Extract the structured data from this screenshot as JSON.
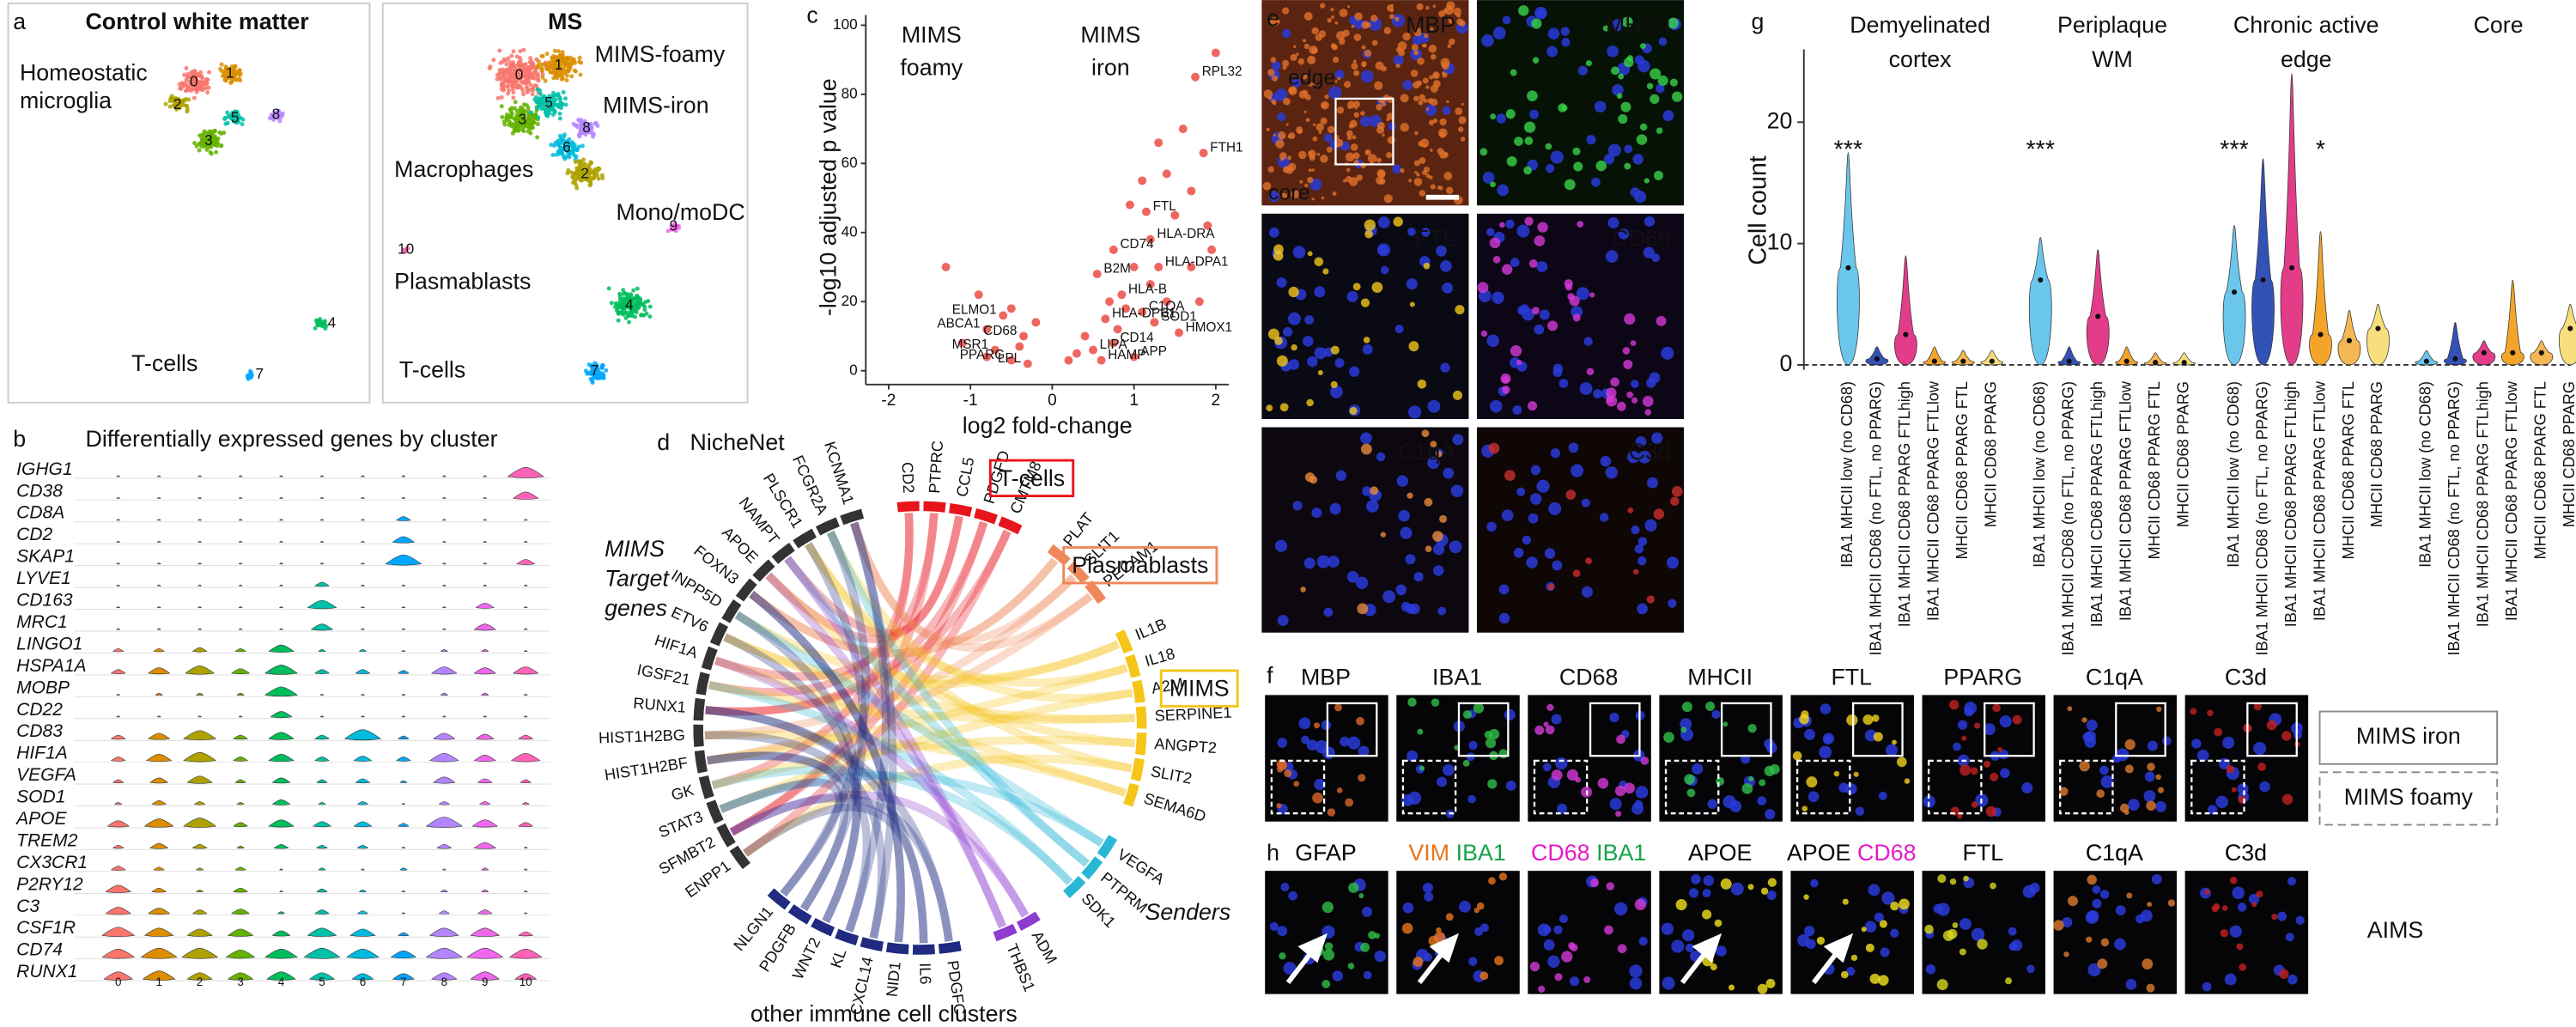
{
  "panels": {
    "a": {
      "label": "a",
      "control": {
        "title": "Control white matter",
        "annotations": [
          "Homeostatic",
          "microglia",
          "T-cells"
        ],
        "clusters": [
          "0",
          "1",
          "2",
          "3",
          "5",
          "8",
          "4",
          "7"
        ]
      },
      "ms": {
        "title": "MS",
        "annotations": [
          "MIMS-foamy",
          "MIMS-iron",
          "Macrophages",
          "Mono/moDC",
          "Plasmablasts",
          "T-cells"
        ],
        "clusters": [
          "0",
          "1",
          "3",
          "5",
          "8",
          "6",
          "2",
          "9",
          "10",
          "4",
          "7"
        ]
      }
    },
    "b": {
      "label": "b",
      "title": "Differentially expressed genes by cluster"
    },
    "c": {
      "label": "c"
    },
    "d": {
      "label": "d",
      "title": "NicheNet",
      "targets_label": [
        "MIMS",
        "Target",
        "genes"
      ],
      "senders_label": "Senders",
      "bottom_label": "other immune cell clusters",
      "sender_groups": [
        {
          "name": "T-cells",
          "color": "#e8141c",
          "genes": [
            "CD2",
            "PTPRC",
            "CCL5",
            "PDGFD",
            "CMTM8"
          ]
        },
        {
          "name": "Plasmablasts",
          "color": "#f0875a",
          "genes": [
            "PLAT",
            "SLIT1",
            "PECAM1"
          ]
        },
        {
          "name": "MIMS",
          "color": "#f5c518",
          "genes": [
            "IL1B",
            "IL18",
            "A2M",
            "SERPINE1",
            "ANGPT2",
            "SLIT2",
            "SEMA6D"
          ]
        },
        {
          "color": "#2ab7d6",
          "genes": [
            "VEGFA",
            "PTPRM",
            "SDK1"
          ]
        },
        {
          "color": "#8e3bd0",
          "genes": [
            "ADM",
            "THBS1"
          ]
        },
        {
          "color": "#1f2a80",
          "genes": [
            "PDGFC",
            "IL6",
            "NID1",
            "CXCL14",
            "KL",
            "WNT2",
            "PDGFB",
            "NLGN1"
          ]
        }
      ],
      "targets": {
        "color": "#333333",
        "genes": [
          "ENPP1",
          "SFMBT2",
          "STAT3",
          "GK",
          "HIST1H2BF",
          "HIST1H2BG",
          "RUNX1",
          "IGSF21",
          "HIF1A",
          "ETV6",
          "INPP5D",
          "FOXN3",
          "APOE",
          "NAMPT",
          "PLSCR1",
          "FCGR2A",
          "KCNMA1"
        ]
      }
    },
    "e": {
      "label": "e",
      "stains": [
        "MBP",
        "MHCII",
        "FTL",
        "CD68",
        "C1qA",
        "C3d"
      ],
      "regions": [
        "edge",
        "core"
      ]
    },
    "f": {
      "label": "f",
      "stains": [
        "MBP",
        "IBA1",
        "CD68",
        "MHCII",
        "FTL",
        "PPARG",
        "C1qA",
        "C3d"
      ],
      "legend": [
        "MIMS iron",
        "MIMS foamy"
      ]
    },
    "g": {
      "label": "g"
    },
    "h": {
      "label": "h",
      "stains": [
        [
          "GFAP"
        ],
        [
          "VIM",
          "IBA1"
        ],
        [
          "CD68",
          "IBA1"
        ],
        [
          "APOE"
        ],
        [
          "APOE",
          "CD68"
        ],
        [
          "FTL"
        ],
        [
          "C1qA"
        ],
        [
          "C3d"
        ]
      ],
      "stain_colors": [
        [
          "#000000"
        ],
        [
          "#e8741c",
          "#16a34a"
        ],
        [
          "#e619c8",
          "#16a34a"
        ],
        [
          "#000000"
        ],
        [
          "#000000",
          "#e619c8"
        ],
        [
          "#000000"
        ],
        [
          "#000000"
        ],
        [
          "#000000"
        ]
      ],
      "note": "AIMS"
    }
  },
  "chart_data": [
    {
      "type": "stackedviolin",
      "genes": [
        "IGHG1",
        "CD38",
        "CD8A",
        "CD2",
        "SKAP1",
        "LYVE1",
        "CD163",
        "MRC1",
        "LINGO1",
        "HSPA1A",
        "MOBP",
        "CD22",
        "CD83",
        "HIF1A",
        "VEGFA",
        "SOD1",
        "APOE",
        "TREM2",
        "CX3CR1",
        "P2RY12",
        "C3",
        "CSF1R",
        "CD74",
        "RUNX1"
      ],
      "categories": [
        "0",
        "1",
        "2",
        "3",
        "4",
        "5",
        "6",
        "7",
        "8",
        "9",
        "10"
      ],
      "colors": [
        "#F8766D",
        "#DB8E00",
        "#AEA200",
        "#64B200",
        "#00BD5C",
        "#00C1A7",
        "#00BADE",
        "#00A6FF",
        "#B385FF",
        "#EF67EB",
        "#FF63B6"
      ],
      "values": [
        [
          0,
          0,
          0,
          0,
          0,
          0,
          0,
          0,
          0,
          0,
          0.9
        ],
        [
          0,
          0,
          0,
          0,
          0,
          0,
          0,
          0,
          0,
          0,
          0.6
        ],
        [
          0,
          0,
          0,
          0,
          0,
          0,
          0,
          0.3,
          0,
          0,
          0
        ],
        [
          0,
          0,
          0,
          0,
          0,
          0,
          0,
          0.5,
          0,
          0,
          0
        ],
        [
          0,
          0,
          0,
          0,
          0,
          0,
          0,
          0.9,
          0,
          0,
          0.4
        ],
        [
          0,
          0,
          0,
          0,
          0,
          0.3,
          0,
          0,
          0,
          0,
          0
        ],
        [
          0,
          0,
          0,
          0,
          0,
          0.7,
          0,
          0,
          0,
          0.4,
          0
        ],
        [
          0,
          0,
          0,
          0,
          0,
          0.5,
          0,
          0,
          0,
          0.5,
          0
        ],
        [
          0.2,
          0.2,
          0.3,
          0.2,
          0.6,
          0.1,
          0.1,
          0,
          0.1,
          0.1,
          0
        ],
        [
          0.3,
          0.5,
          0.7,
          0.4,
          0.8,
          0.3,
          0.3,
          0.2,
          0.6,
          0.5,
          0.6
        ],
        [
          0,
          0.1,
          0.1,
          0.1,
          0.8,
          0,
          0,
          0,
          0.1,
          0.1,
          0
        ],
        [
          0,
          0,
          0,
          0,
          0.5,
          0,
          0,
          0,
          0,
          0,
          0
        ],
        [
          0.3,
          0.5,
          0.8,
          0.3,
          0.6,
          0.3,
          0.9,
          0.2,
          0.5,
          0.4,
          0.3
        ],
        [
          0.3,
          0.6,
          0.8,
          0.3,
          0.6,
          0.3,
          0.4,
          0.3,
          0.7,
          0.5,
          0.7
        ],
        [
          0.2,
          0.4,
          0.6,
          0.2,
          0.4,
          0.2,
          0.3,
          0.1,
          0.5,
          0.3,
          0.2
        ],
        [
          0.1,
          0.3,
          0.2,
          0.1,
          0.4,
          0.1,
          0.2,
          0,
          0.2,
          0.2,
          0.1
        ],
        [
          0.5,
          0.7,
          0.8,
          0.3,
          0.6,
          0.4,
          0.4,
          0.2,
          0.9,
          0.6,
          0.3
        ],
        [
          0.2,
          0.4,
          0.3,
          0.1,
          0.3,
          0.2,
          0.2,
          0,
          0.3,
          0.5,
          0
        ],
        [
          0.3,
          0.2,
          0.1,
          0.2,
          0,
          0.1,
          0,
          0.1,
          0,
          0.1,
          0
        ],
        [
          0.6,
          0.3,
          0.1,
          0.3,
          0,
          0.2,
          0.1,
          0,
          0.1,
          0.1,
          0
        ],
        [
          0.6,
          0.5,
          0.3,
          0.4,
          0.1,
          0.3,
          0.2,
          0,
          0.2,
          0.3,
          0
        ],
        [
          0.8,
          0.7,
          0.6,
          0.6,
          0.4,
          0.7,
          0.6,
          0.2,
          0.7,
          0.7,
          0.3
        ],
        [
          0.8,
          0.9,
          0.9,
          0.7,
          0.8,
          0.9,
          0.8,
          0.6,
          0.9,
          0.9,
          0.8
        ],
        [
          0.7,
          0.8,
          0.6,
          0.6,
          0.7,
          0.6,
          0.5,
          0.5,
          0.6,
          0.7,
          0.5
        ]
      ]
    },
    {
      "type": "scatter",
      "xlabel": "log2 fold-change",
      "ylabel": "-log10 adjusted p value",
      "annotations": [
        [
          "MIMS",
          "foamy"
        ],
        [
          "MIMS",
          "iron"
        ]
      ],
      "xlim": [
        -2.28,
        2.16
      ],
      "ylim": [
        -4,
        103
      ],
      "xticks": [
        -2,
        -1,
        0,
        1,
        2
      ],
      "yticks": [
        0,
        20,
        40,
        60,
        80,
        100
      ],
      "color": "#e8332a",
      "points": {
        "x": [
          1.75,
          1.85,
          1.15,
          1.2,
          0.75,
          1.3,
          0.55,
          0.85,
          1.1,
          0.65,
          1.25,
          1.55,
          0.75,
          0.5,
          0.6,
          1.0,
          -0.6,
          -0.8,
          -0.35,
          -0.7,
          -0.5,
          -0.3,
          2.0,
          1.6,
          1.4,
          1.7,
          1.3,
          1.9,
          1.5,
          1.2,
          1.0,
          0.9,
          1.7,
          1.95,
          0.7,
          0.4,
          0.3,
          -0.9,
          -1.1,
          -0.5,
          -0.2,
          -1.3,
          -0.8,
          0.2,
          1.4,
          1.8,
          0.95,
          1.1,
          -0.4,
          0.8
        ],
        "values": [
          85,
          63,
          46,
          38,
          35,
          30,
          28,
          22,
          17,
          15,
          14,
          11,
          8,
          6,
          3,
          4,
          16,
          12,
          10,
          6,
          3,
          2,
          92,
          70,
          57,
          52,
          66,
          42,
          45,
          25,
          30,
          18,
          30,
          35,
          20,
          10,
          5,
          22,
          8,
          18,
          14,
          30,
          4,
          3,
          20,
          20,
          48,
          55,
          7,
          12
        ],
        "labels": [
          "RPL32",
          "FTH1",
          "FTL",
          "HLA-DRA",
          "CD74",
          "HLA-DPA1",
          "B2M",
          "HLA-B",
          "C1QA",
          "HLA-DPB1",
          "SOD1",
          "HMOX1",
          "CD14",
          "LIPA",
          "HAMP",
          "APP",
          "ELMO1",
          "ABCA1",
          "CD68",
          "MSR1",
          "PPARG",
          "LPL",
          null,
          null,
          null,
          null,
          null,
          null,
          null,
          null,
          null,
          null,
          null,
          null,
          null,
          null,
          null,
          null,
          null,
          null,
          null,
          null,
          null,
          null,
          null,
          null,
          null,
          null,
          null,
          null
        ]
      }
    },
    {
      "type": "violin",
      "ylabel": "Cell count",
      "ylim": [
        -0.4,
        26
      ],
      "yticks": [
        0,
        10,
        20
      ],
      "categories": [
        "IBA1 MHCII low (no CD68)",
        "IBA1 MHCII CD68 (no FTL, no PPARG)",
        "IBA1 MHCII CD68 PPARG FTLhigh",
        "IBA1 MHCII CD68 PPARG FTLlow",
        "MHCII CD68 PPARG FTL",
        "MHCII CD68 PPARG"
      ],
      "colors": [
        "#5bc0eb",
        "#1e40af",
        "#e0287d",
        "#f39c12",
        "#f5b041",
        "#f7dc6f"
      ],
      "groups": [
        {
          "title": [
            "Demyelinated",
            "cortex"
          ],
          "medians": [
            8,
            0.5,
            2.5,
            0.3,
            0.3,
            0.3
          ],
          "maxima": [
            17.5,
            1.5,
            9,
            1.5,
            1.2,
            1.2
          ],
          "significance": [
            "***",
            null,
            null,
            null,
            null,
            null
          ]
        },
        {
          "title": [
            "Periplaque",
            "WM"
          ],
          "medians": [
            7,
            0.3,
            4,
            0.3,
            0.2,
            0.2
          ],
          "maxima": [
            10.5,
            1.5,
            9.5,
            1.5,
            1,
            1
          ],
          "significance": [
            "***",
            null,
            null,
            null,
            null,
            null
          ]
        },
        {
          "title": [
            "Chronic active",
            "edge"
          ],
          "medians": [
            6,
            7,
            8,
            2.5,
            2,
            3
          ],
          "maxima": [
            11.5,
            17,
            24,
            11,
            4.5,
            5
          ],
          "significance": [
            "***",
            null,
            null,
            "*",
            null,
            null
          ]
        },
        {
          "title": [
            "Core"
          ],
          "medians": [
            0.3,
            0.5,
            1,
            1,
            1,
            3
          ],
          "maxima": [
            1.2,
            3.5,
            2,
            7,
            2,
            5
          ],
          "significance": [
            null,
            null,
            null,
            null,
            null,
            null
          ]
        }
      ]
    }
  ]
}
